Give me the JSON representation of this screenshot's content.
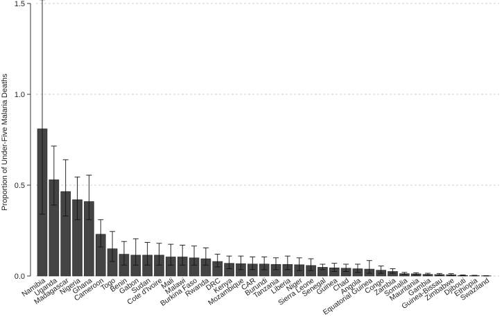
{
  "chart_data": {
    "type": "bar",
    "ylabel": "Proportion of Under-Five Malaria Deaths",
    "xlabel": "",
    "ylim": [
      0,
      1.5
    ],
    "yticks": [
      "0.0",
      "0.5",
      "1.0",
      "1.5"
    ],
    "grid": "horizontal dashed",
    "error_bars": true,
    "bar_color": "#444444",
    "categories": [
      "Namibia",
      "Uganda",
      "Madagascar",
      "Nigeria",
      "Ghana",
      "Cameroon",
      "Togo",
      "Benin",
      "Gabon",
      "Sudan",
      "Cote d'Ivoire",
      "Mali",
      "Malawi",
      "Burkina Faso",
      "Rwanda",
      "DRC",
      "Kenya",
      "Mozambique",
      "CAR",
      "Burundi",
      "Tanzania",
      "Liberia",
      "Niger",
      "Sierra Leone",
      "Senegal",
      "Guinea",
      "Chad",
      "Angola",
      "Equatorial Guinea",
      "Congo",
      "Zambia",
      "Somalia",
      "Mauritania",
      "Gambia",
      "Guinea-Bissau",
      "Zimbabwe",
      "Djibouti",
      "Ethiopia",
      "Swaziland"
    ],
    "values": [
      0.81,
      0.53,
      0.465,
      0.42,
      0.41,
      0.23,
      0.15,
      0.12,
      0.115,
      0.115,
      0.115,
      0.105,
      0.105,
      0.1,
      0.095,
      0.08,
      0.07,
      0.068,
      0.066,
      0.066,
      0.064,
      0.064,
      0.062,
      0.058,
      0.048,
      0.045,
      0.043,
      0.04,
      0.038,
      0.032,
      0.025,
      0.013,
      0.012,
      0.009,
      0.008,
      0.007,
      0.003,
      0.002,
      0.001
    ],
    "err_low": [
      0.34,
      0.39,
      0.33,
      0.31,
      0.31,
      0.16,
      0.08,
      0.06,
      0.06,
      0.06,
      0.06,
      0.06,
      0.06,
      0.06,
      0.06,
      0.05,
      0.04,
      0.035,
      0.035,
      0.035,
      0.035,
      0.035,
      0.03,
      0.03,
      0.035,
      0.025,
      0.025,
      0.02,
      0.015,
      0.015,
      0.015,
      0.008,
      0.006,
      0.005,
      0.004,
      0.004,
      0.001,
      0.001,
      0.0
    ],
    "err_high": [
      1.52,
      0.715,
      0.64,
      0.545,
      0.555,
      0.31,
      0.245,
      0.19,
      0.205,
      0.185,
      0.18,
      0.175,
      0.17,
      0.165,
      0.155,
      0.12,
      0.11,
      0.11,
      0.105,
      0.105,
      0.1,
      0.11,
      0.1,
      0.095,
      0.065,
      0.07,
      0.065,
      0.065,
      0.085,
      0.055,
      0.04,
      0.02,
      0.018,
      0.015,
      0.014,
      0.013,
      0.006,
      0.004,
      0.002
    ]
  }
}
